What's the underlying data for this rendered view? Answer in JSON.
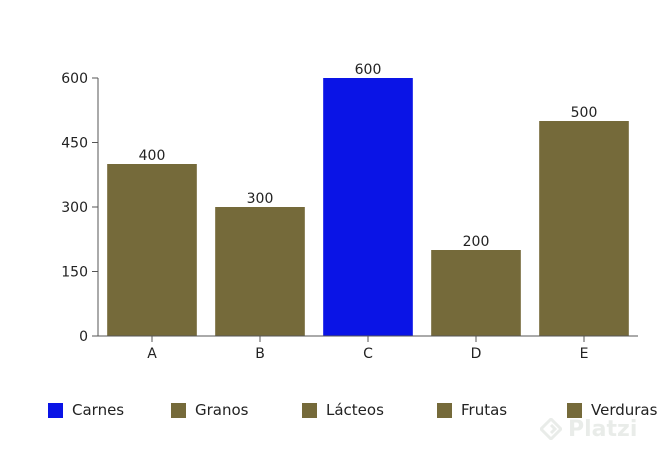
{
  "chart_data": {
    "type": "bar",
    "title": "",
    "xlabel": "",
    "ylabel": "",
    "categories": [
      "A",
      "B",
      "C",
      "D",
      "E"
    ],
    "values": [
      400,
      300,
      600,
      200,
      500
    ],
    "data_labels": [
      "400",
      "300",
      "600",
      "200",
      "500"
    ],
    "ylim": [
      0,
      600
    ],
    "yticks": [
      0,
      150,
      300,
      450,
      600
    ],
    "ytick_labels": [
      "0",
      "150",
      "300",
      "450",
      "600"
    ],
    "bar_colors": [
      "#756a3a",
      "#756a3a",
      "#0a14e6",
      "#756a3a",
      "#756a3a"
    ],
    "grid": false,
    "legend": {
      "placement": "bottom",
      "entries": [
        {
          "label": "Carnes",
          "color": "#0a14e6"
        },
        {
          "label": "Granos",
          "color": "#756a3a"
        },
        {
          "label": "Lácteos",
          "color": "#756a3a"
        },
        {
          "label": "Frutas",
          "color": "#756a3a"
        },
        {
          "label": "Verduras",
          "color": "#756a3a"
        }
      ]
    }
  },
  "watermark": {
    "text": "Platzi",
    "icon": "platzi-logo-icon"
  }
}
